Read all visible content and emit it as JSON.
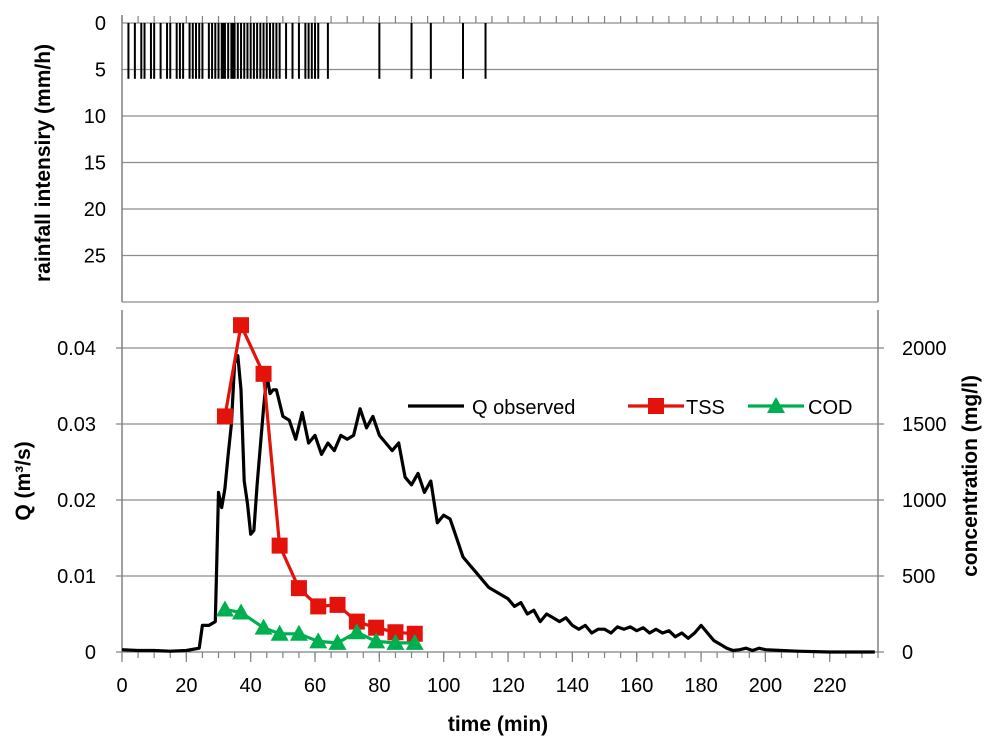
{
  "chart_data": [
    {
      "type": "bar",
      "panel": "rainfall",
      "ylabel": "rainfall intensiry (mm/h)",
      "ylim": [
        0,
        30
      ],
      "y_inverted": true,
      "yticks": [
        0,
        5,
        10,
        15,
        20,
        25
      ],
      "grid": true,
      "xlim": [
        0,
        235
      ],
      "x_minor_tick_step": 5,
      "bar_value": 6,
      "bar_times": [
        2,
        4,
        6,
        7,
        9,
        10,
        12,
        14,
        15,
        17,
        18,
        19,
        21,
        22,
        23,
        24,
        25,
        27,
        28,
        29,
        30,
        31,
        31.5,
        32,
        33,
        34,
        34.5,
        35,
        36,
        37,
        38,
        39,
        40,
        41,
        42,
        43,
        44,
        45,
        46,
        47,
        48,
        49,
        51,
        53,
        55,
        57,
        58,
        59,
        60,
        61,
        64,
        80,
        90,
        96,
        106,
        113
      ]
    },
    {
      "type": "line",
      "panel": "flow",
      "xlabel": "time (min)",
      "ylabel": "Q (m³/s)",
      "y2label": "concentration (mg/l)",
      "xlim": [
        0,
        235
      ],
      "xticks": [
        0,
        20,
        40,
        60,
        80,
        100,
        120,
        140,
        160,
        180,
        200,
        220
      ],
      "ylim": [
        0,
        0.045
      ],
      "yticks": [
        0,
        0.01,
        0.02,
        0.03,
        0.04
      ],
      "ytick_labels": [
        "0",
        "0.01",
        "0.02",
        "0.03",
        "0.04"
      ],
      "y2lim": [
        0,
        2250
      ],
      "y2ticks": [
        0,
        500,
        1000,
        1500,
        2000
      ],
      "grid": true,
      "legend_position": "upper-right",
      "series": [
        {
          "name": "Q observed",
          "axis": "left",
          "color": "#000000",
          "marker": "none",
          "x": [
            0,
            5,
            10,
            15,
            20,
            24,
            25,
            27,
            29,
            30,
            31,
            32,
            33,
            34,
            35,
            36,
            37,
            38,
            39,
            40,
            41,
            42,
            43,
            44,
            45,
            46,
            47,
            48,
            50,
            52,
            54,
            56,
            58,
            60,
            62,
            64,
            66,
            68,
            70,
            72,
            74,
            76,
            78,
            80,
            82,
            84,
            86,
            88,
            90,
            92,
            94,
            96,
            98,
            100,
            102,
            104,
            106,
            108,
            110,
            112,
            114,
            116,
            118,
            120,
            122,
            124,
            126,
            128,
            130,
            132,
            134,
            136,
            138,
            140,
            142,
            144,
            146,
            148,
            150,
            152,
            154,
            156,
            158,
            160,
            162,
            164,
            166,
            168,
            170,
            172,
            174,
            176,
            178,
            180,
            182,
            184,
            186,
            188,
            190,
            192,
            194,
            196,
            198,
            200,
            205,
            210,
            220,
            234
          ],
          "y": [
            0.0003,
            0.0002,
            0.0002,
            0.0001,
            0.0002,
            0.0005,
            0.0035,
            0.0035,
            0.004,
            0.021,
            0.019,
            0.0215,
            0.026,
            0.03,
            0.038,
            0.039,
            0.0345,
            0.0225,
            0.0195,
            0.0155,
            0.016,
            0.022,
            0.027,
            0.032,
            0.0365,
            0.034,
            0.0345,
            0.0345,
            0.031,
            0.0305,
            0.028,
            0.0315,
            0.0275,
            0.0285,
            0.026,
            0.0275,
            0.0265,
            0.0285,
            0.028,
            0.0285,
            0.032,
            0.0295,
            0.031,
            0.0285,
            0.0275,
            0.0265,
            0.0275,
            0.023,
            0.022,
            0.0235,
            0.021,
            0.0225,
            0.017,
            0.018,
            0.0175,
            0.015,
            0.0125,
            0.0115,
            0.0105,
            0.0095,
            0.0085,
            0.008,
            0.0075,
            0.007,
            0.006,
            0.0065,
            0.005,
            0.0055,
            0.004,
            0.005,
            0.0045,
            0.004,
            0.0045,
            0.0035,
            0.003,
            0.0035,
            0.0025,
            0.003,
            0.003,
            0.0025,
            0.0033,
            0.003,
            0.0033,
            0.0028,
            0.0032,
            0.0025,
            0.003,
            0.0025,
            0.0028,
            0.002,
            0.0025,
            0.0018,
            0.0025,
            0.0035,
            0.0025,
            0.0015,
            0.001,
            0.0005,
            0.0002,
            0.0003,
            0.0005,
            0.0002,
            0.0005,
            0.0003,
            0.0002,
            0.0001,
            0.0,
            0.0
          ]
        },
        {
          "name": "TSS",
          "axis": "right",
          "color": "#e3120b",
          "marker": "square",
          "x": [
            32,
            37,
            44,
            49,
            55,
            61,
            67,
            73,
            79,
            85,
            91
          ],
          "y": [
            1550,
            2150,
            1830,
            700,
            420,
            300,
            310,
            200,
            160,
            130,
            120
          ]
        },
        {
          "name": "COD",
          "axis": "right",
          "color": "#00b050",
          "marker": "triangle",
          "x": [
            32,
            37,
            44,
            49,
            55,
            61,
            67,
            73,
            79,
            85,
            91
          ],
          "y": [
            280,
            260,
            160,
            120,
            120,
            70,
            60,
            130,
            70,
            60,
            60
          ]
        }
      ]
    }
  ]
}
